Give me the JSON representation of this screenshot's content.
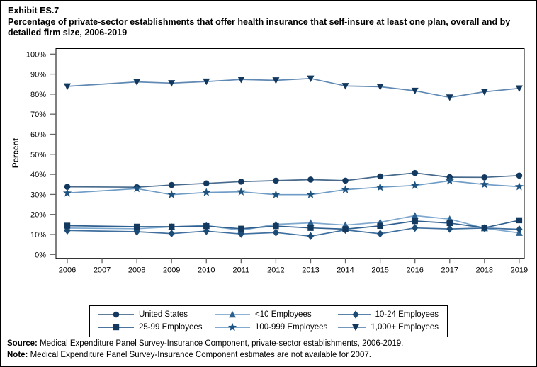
{
  "header": {
    "exhibit_label": "Exhibit ES.7",
    "title": "Percentage of private-sector establishments that offer health insurance that self-insure at least one plan, overall and by detailed firm size, 2006-2019"
  },
  "chart_data": {
    "type": "line",
    "title": "Percentage of private-sector establishments that offer health insurance that self-insure at least one plan, overall and by detailed firm size, 2006-2019",
    "xlabel": "",
    "ylabel": "Percent",
    "ylim": [
      0,
      100
    ],
    "y_ticks": [
      0,
      10,
      20,
      30,
      40,
      50,
      60,
      70,
      80,
      90,
      100
    ],
    "y_tick_labels": [
      "0%",
      "10%",
      "20%",
      "30%",
      "40%",
      "50%",
      "60%",
      "70%",
      "80%",
      "90%",
      "100%"
    ],
    "x": [
      2006,
      2007,
      2008,
      2009,
      2010,
      2011,
      2012,
      2013,
      2014,
      2015,
      2016,
      2017,
      2018,
      2019
    ],
    "x_tick_labels": [
      "2006",
      "2007",
      "2008",
      "2009",
      "2010",
      "2011",
      "2012",
      "2013",
      "2014",
      "2015",
      "2016",
      "2017",
      "2018",
      "2019"
    ],
    "grid": "off",
    "legend_position": "bottom",
    "note": "No data for 2007; lines connect 2006 directly to 2008",
    "series": [
      {
        "name": "United States",
        "marker": "circle",
        "line_color": "#46698C",
        "marker_color": "#13395E",
        "values": [
          33.8,
          null,
          33.6,
          34.7,
          35.5,
          36.4,
          36.9,
          37.4,
          36.9,
          39.0,
          40.7,
          38.6,
          38.5,
          39.4
        ]
      },
      {
        "name": "<10 Employees",
        "marker": "triangle-up",
        "line_color": "#7FA8CE",
        "marker_color": "#2B608F",
        "values": [
          13.2,
          null,
          12.9,
          13.8,
          14.5,
          12.1,
          15.1,
          15.8,
          14.7,
          16.1,
          19.4,
          17.7,
          13.1,
          10.8
        ]
      },
      {
        "name": "10-24 Employees",
        "marker": "diamond",
        "line_color": "#3F6F9E",
        "marker_color": "#1C4B75",
        "values": [
          12.0,
          null,
          11.4,
          10.5,
          11.7,
          10.3,
          11.0,
          9.2,
          12.3,
          10.4,
          13.3,
          12.8,
          13.2,
          12.6
        ]
      },
      {
        "name": "25-99 Employees",
        "marker": "square",
        "line_color": "#2F608F",
        "marker_color": "#13395E",
        "values": [
          14.4,
          null,
          13.9,
          13.9,
          14.2,
          12.9,
          14.2,
          13.3,
          12.7,
          14.3,
          16.7,
          15.7,
          13.4,
          17.1
        ]
      },
      {
        "name": "100-999 Employees",
        "marker": "star",
        "line_color": "#6F9CC6",
        "marker_color": "#1E5380",
        "values": [
          30.7,
          null,
          32.9,
          29.9,
          31.0,
          31.3,
          29.9,
          29.9,
          32.4,
          33.6,
          34.5,
          36.8,
          35.0,
          33.9
        ]
      },
      {
        "name": "1,000+ Employees",
        "marker": "triangle-down",
        "line_color": "#5F88B3",
        "marker_color": "#12375C",
        "values": [
          83.9,
          null,
          86.1,
          85.5,
          86.3,
          87.3,
          86.9,
          87.8,
          84.1,
          83.7,
          81.7,
          78.4,
          81.2,
          82.9
        ]
      }
    ]
  },
  "footer": {
    "source_label": "Source:",
    "source_text": " Medical Expenditure Panel Survey-Insurance Component, private-sector establishments, 2006-2019.",
    "note_label": "Note:",
    "note_text": " Medical Expenditure Panel Survey-Insurance Component estimates are not available for 2007."
  }
}
